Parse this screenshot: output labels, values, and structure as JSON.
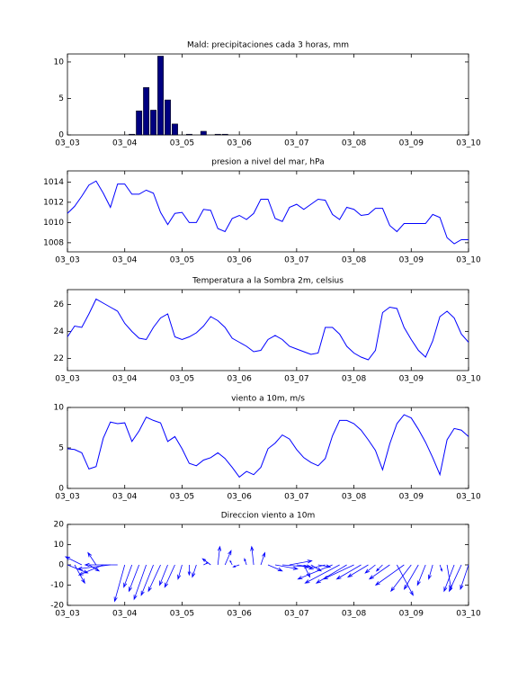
{
  "chart_data": [
    {
      "type": "bar",
      "title": "Mald: precipitaciones cada 3 horas, mm",
      "color": "#000080",
      "x": [
        1.125,
        1.25,
        1.375,
        1.5,
        1.625,
        1.75,
        1.875,
        2.125,
        2.375,
        2.625,
        2.75
      ],
      "values": [
        0.1,
        3.3,
        6.5,
        3.4,
        10.8,
        4.8,
        1.5,
        0.1,
        0.5,
        0.1,
        0.1
      ],
      "xlim": [
        0,
        7
      ],
      "xticks": [
        {
          "value": 0,
          "label": "03_03"
        },
        {
          "value": 1,
          "label": "03_04"
        },
        {
          "value": 2,
          "label": "03_05"
        },
        {
          "value": 3,
          "label": "03_06"
        },
        {
          "value": 4,
          "label": "03_07"
        },
        {
          "value": 5,
          "label": "03_08"
        },
        {
          "value": 6,
          "label": "03_09"
        },
        {
          "value": 7,
          "label": "03_10"
        }
      ],
      "ylim": [
        0,
        11.1
      ],
      "yticks": [
        0,
        5,
        10
      ]
    },
    {
      "type": "line",
      "title": "presion a nivel del mar, hPa",
      "color": "#0000ff",
      "x": [
        0,
        0.125,
        0.25,
        0.375,
        0.5,
        0.625,
        0.75,
        0.875,
        1,
        1.125,
        1.25,
        1.375,
        1.5,
        1.625,
        1.75,
        1.875,
        2,
        2.125,
        2.25,
        2.375,
        2.5,
        2.625,
        2.75,
        2.875,
        3,
        3.125,
        3.25,
        3.375,
        3.5,
        3.625,
        3.75,
        3.875,
        4,
        4.125,
        4.25,
        4.375,
        4.5,
        4.625,
        4.75,
        4.875,
        5,
        5.125,
        5.25,
        5.375,
        5.5,
        5.625,
        5.75,
        5.875,
        6,
        6.125,
        6.25,
        6.375,
        6.5,
        6.625,
        6.75,
        6.875,
        7
      ],
      "values": [
        1010.9,
        1011.6,
        1012.6,
        1013.7,
        1014.1,
        1012.9,
        1011.5,
        1013.8,
        1013.8,
        1012.8,
        1012.8,
        1013.2,
        1012.9,
        1011,
        1009.8,
        1010.9,
        1011,
        1010,
        1010,
        1011.3,
        1011.2,
        1009.4,
        1009.1,
        1010.4,
        1010.7,
        1010.3,
        1010.9,
        1012.3,
        1012.3,
        1010.4,
        1010.1,
        1011.5,
        1011.8,
        1011.3,
        1011.8,
        1012.3,
        1012.2,
        1010.8,
        1010.3,
        1011.5,
        1011.3,
        1010.7,
        1010.8,
        1011.4,
        1011.4,
        1009.7,
        1009.1,
        1009.9,
        1009.9,
        1009.9,
        1009.9,
        1010.8,
        1010.5,
        1008.5,
        1007.9,
        1008.3,
        1008.3
      ],
      "xlim": [
        0,
        7
      ],
      "xticks": [
        {
          "value": 0,
          "label": "03_03"
        },
        {
          "value": 1,
          "label": "03_04"
        },
        {
          "value": 2,
          "label": "03_05"
        },
        {
          "value": 3,
          "label": "03_06"
        },
        {
          "value": 4,
          "label": "03_07"
        },
        {
          "value": 5,
          "label": "03_08"
        },
        {
          "value": 6,
          "label": "03_09"
        },
        {
          "value": 7,
          "label": "03_10"
        }
      ],
      "ylim": [
        1007.1,
        1015.1
      ],
      "yticks": [
        1008,
        1010,
        1012,
        1014
      ]
    },
    {
      "type": "line",
      "title": "Temperatura a la Sombra 2m, celsius",
      "color": "#0000ff",
      "x": [
        0,
        0.125,
        0.25,
        0.375,
        0.5,
        0.625,
        0.75,
        0.875,
        1,
        1.125,
        1.25,
        1.375,
        1.5,
        1.625,
        1.75,
        1.875,
        2,
        2.125,
        2.25,
        2.375,
        2.5,
        2.625,
        2.75,
        2.875,
        3,
        3.125,
        3.25,
        3.375,
        3.5,
        3.625,
        3.75,
        3.875,
        4,
        4.125,
        4.25,
        4.375,
        4.5,
        4.625,
        4.75,
        4.875,
        5,
        5.125,
        5.25,
        5.375,
        5.5,
        5.625,
        5.75,
        5.875,
        6,
        6.125,
        6.25,
        6.375,
        6.5,
        6.625,
        6.75,
        6.875,
        7
      ],
      "values": [
        23.6,
        24.4,
        24.3,
        25.3,
        26.4,
        26.1,
        25.8,
        25.5,
        24.6,
        24,
        23.5,
        23.4,
        24.3,
        25,
        25.3,
        23.6,
        23.4,
        23.6,
        23.9,
        24.4,
        25.1,
        24.8,
        24.3,
        23.5,
        23.2,
        22.9,
        22.5,
        22.6,
        23.4,
        23.7,
        23.4,
        22.9,
        22.7,
        22.5,
        22.3,
        22.4,
        24.3,
        24.3,
        23.8,
        22.9,
        22.4,
        22.1,
        21.9,
        22.6,
        25.4,
        25.8,
        25.7,
        24.3,
        23.4,
        22.6,
        22.1,
        23.3,
        25.1,
        25.5,
        25,
        23.8,
        23.2
      ],
      "xlim": [
        0,
        7
      ],
      "xticks": [
        {
          "value": 0,
          "label": "03_03"
        },
        {
          "value": 1,
          "label": "03_04"
        },
        {
          "value": 2,
          "label": "03_05"
        },
        {
          "value": 3,
          "label": "03_06"
        },
        {
          "value": 4,
          "label": "03_07"
        },
        {
          "value": 5,
          "label": "03_08"
        },
        {
          "value": 6,
          "label": "03_09"
        },
        {
          "value": 7,
          "label": "03_10"
        }
      ],
      "ylim": [
        21.1,
        27.1
      ],
      "yticks": [
        22,
        24,
        26
      ]
    },
    {
      "type": "line",
      "title": "viento a 10m, m/s",
      "color": "#0000ff",
      "x": [
        0,
        0.125,
        0.25,
        0.375,
        0.5,
        0.625,
        0.75,
        0.875,
        1,
        1.125,
        1.25,
        1.375,
        1.5,
        1.625,
        1.75,
        1.875,
        2,
        2.125,
        2.25,
        2.375,
        2.5,
        2.625,
        2.75,
        2.875,
        3,
        3.125,
        3.25,
        3.375,
        3.5,
        3.625,
        3.75,
        3.875,
        4,
        4.125,
        4.25,
        4.375,
        4.5,
        4.625,
        4.75,
        4.875,
        5,
        5.125,
        5.25,
        5.375,
        5.5,
        5.625,
        5.75,
        5.875,
        6,
        6.125,
        6.25,
        6.375,
        6.5,
        6.625,
        6.75,
        6.875,
        7
      ],
      "values": [
        4.9,
        4.8,
        4.4,
        2.4,
        2.7,
        6.2,
        8.2,
        8,
        8.1,
        5.8,
        7.1,
        8.8,
        8.4,
        8.1,
        5.8,
        6.4,
        4.9,
        3.1,
        2.8,
        3.5,
        3.8,
        4.4,
        3.7,
        2.6,
        1.4,
        2.1,
        1.7,
        2.6,
        4.9,
        5.6,
        6.6,
        6.1,
        4.8,
        3.8,
        3.2,
        2.8,
        3.7,
        6.5,
        8.4,
        8.4,
        8,
        7.2,
        6,
        4.7,
        2.3,
        5.5,
        8,
        9.1,
        8.7,
        7.3,
        5.7,
        3.8,
        1.7,
        6,
        7.4,
        7.2,
        6.4
      ],
      "xlim": [
        0,
        7
      ],
      "xticks": [
        {
          "value": 0,
          "label": "03_03"
        },
        {
          "value": 1,
          "label": "03_04"
        },
        {
          "value": 2,
          "label": "03_05"
        },
        {
          "value": 3,
          "label": "03_06"
        },
        {
          "value": 4,
          "label": "03_07"
        },
        {
          "value": 5,
          "label": "03_08"
        },
        {
          "value": 6,
          "label": "03_09"
        },
        {
          "value": 7,
          "label": "03_10"
        }
      ],
      "ylim": [
        0,
        10
      ],
      "yticks": [
        0,
        5,
        10
      ]
    },
    {
      "type": "quiver",
      "title": "Direccion viento a 10m",
      "color": "#0000ff",
      "x": [
        0,
        0.125,
        0.25,
        0.375,
        0.5,
        0.625,
        0.75,
        0.875,
        1,
        1.125,
        1.25,
        1.375,
        1.5,
        1.625,
        1.75,
        1.875,
        2,
        2.125,
        2.25,
        2.375,
        2.5,
        2.625,
        2.75,
        2.875,
        3,
        3.125,
        3.25,
        3.375,
        3.5,
        3.625,
        3.75,
        3.875,
        4,
        4.125,
        4.25,
        4.375,
        4.5,
        4.625,
        4.75,
        4.875,
        5,
        5.125,
        5.25,
        5.375,
        5.5,
        5.625,
        5.75,
        5.875,
        6,
        6.125,
        6.25,
        6.375,
        6.5,
        6.625,
        6.75,
        6.875,
        7
      ],
      "u": [
        10,
        5,
        -8,
        5,
        -4,
        -12,
        -16,
        -16,
        -5,
        -4,
        -5,
        -6,
        -6,
        -6,
        -4,
        -5,
        -2,
        0,
        -2,
        2,
        -4,
        1,
        3,
        -1,
        -3,
        -1,
        -1,
        2,
        7,
        11,
        13,
        11,
        7,
        3,
        5,
        6,
        -8,
        -17,
        -17,
        -15,
        -15,
        -12,
        -10,
        -5,
        -3,
        -10,
        8,
        -14,
        -10,
        -7,
        -4,
        -2,
        1,
        2,
        -5,
        -6,
        -4
      ],
      "v": [
        -4,
        -9,
        4,
        -3,
        6,
        -5,
        -2,
        0,
        -18,
        -11,
        -13,
        -17,
        -15,
        -13,
        -10,
        -11,
        -7,
        -5,
        -6,
        1,
        3,
        9,
        7,
        2,
        -1,
        3,
        9,
        6,
        -3,
        -2,
        -1,
        2,
        -1,
        -6,
        -3,
        -1,
        -2,
        -7,
        -9,
        -9,
        -7,
        -7,
        -6,
        -4,
        -3,
        -7,
        -15,
        -10,
        -13,
        -12,
        -10,
        -7,
        -3,
        -12,
        -13,
        -13,
        -12
      ],
      "xlim": [
        0,
        7
      ],
      "xticks": [
        {
          "value": 0,
          "label": "03_03"
        },
        {
          "value": 1,
          "label": "03_04"
        },
        {
          "value": 2,
          "label": "03_05"
        },
        {
          "value": 3,
          "label": "03_06"
        },
        {
          "value": 4,
          "label": "03_07"
        },
        {
          "value": 5,
          "label": "03_08"
        },
        {
          "value": 6,
          "label": "03_09"
        },
        {
          "value": 7,
          "label": "03_10"
        }
      ],
      "ylim": [
        -20,
        20
      ],
      "yticks": [
        -20,
        -10,
        0,
        10,
        20
      ]
    }
  ]
}
